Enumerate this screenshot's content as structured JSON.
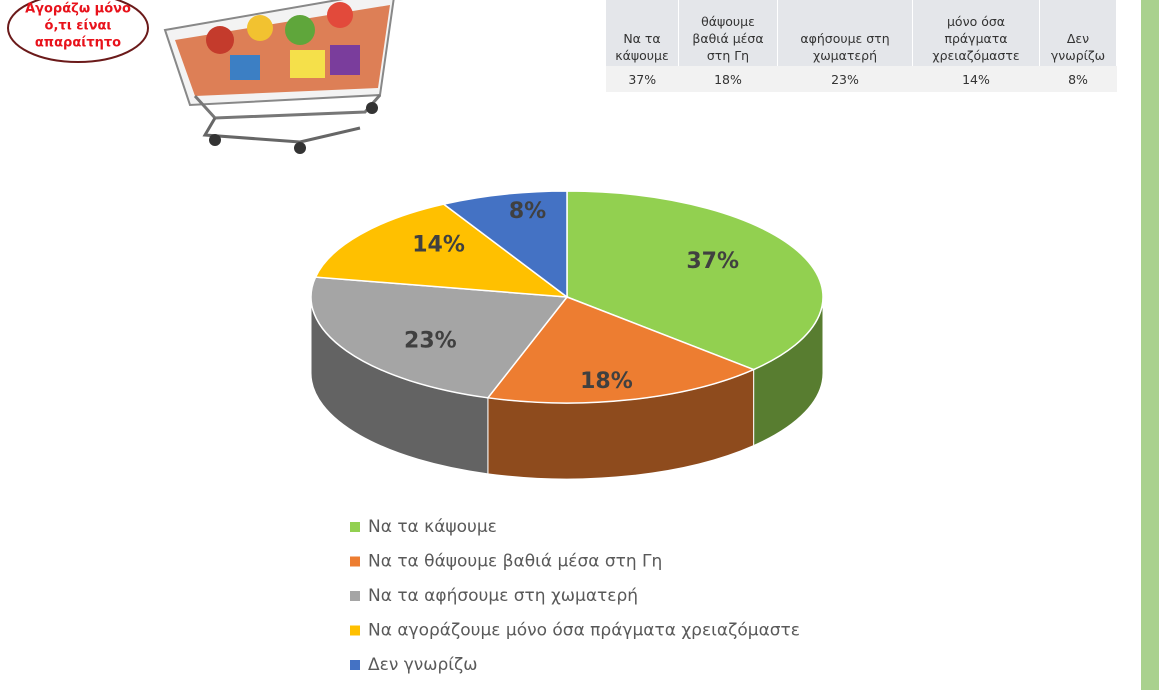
{
  "chart_data": {
    "type": "pie",
    "categories": [
      "Να τα κάψουμε",
      "Να τα θάψουμε βαθιά μέσα στη Γη",
      "Να τα αφήσουμε στη χωματερή",
      "Να αγοράζουμε μόνο όσα πράγματα χρειαζόμαστε",
      "Δεν γνωρίζω"
    ],
    "values": [
      37,
      18,
      23,
      14,
      8
    ],
    "value_labels": [
      "37%",
      "18%",
      "23%",
      "14%",
      "8%"
    ],
    "colors": [
      "#92d050",
      "#ed7d31",
      "#a5a5a5",
      "#ffc000",
      "#4472c4"
    ],
    "legend": "bottom"
  },
  "badge": {
    "lines": [
      "Αγοράζω μόνο",
      "ό,τι είναι",
      "απαραίτητο"
    ]
  },
  "table": {
    "header": [
      [
        "Να τα",
        "κάψουμε"
      ],
      [
        "θάψουμε",
        "βαθιά μέσα",
        "στη Γη"
      ],
      [
        "αφήσουμε στη",
        "χωματερή"
      ],
      [
        "μόνο όσα",
        "πράγματα",
        "χρειαζόμαστε"
      ],
      [
        "Δεν",
        "γνωρίζω"
      ]
    ],
    "rows": [
      [
        "37%",
        "18%",
        "23%",
        "14%",
        "8%"
      ]
    ]
  }
}
